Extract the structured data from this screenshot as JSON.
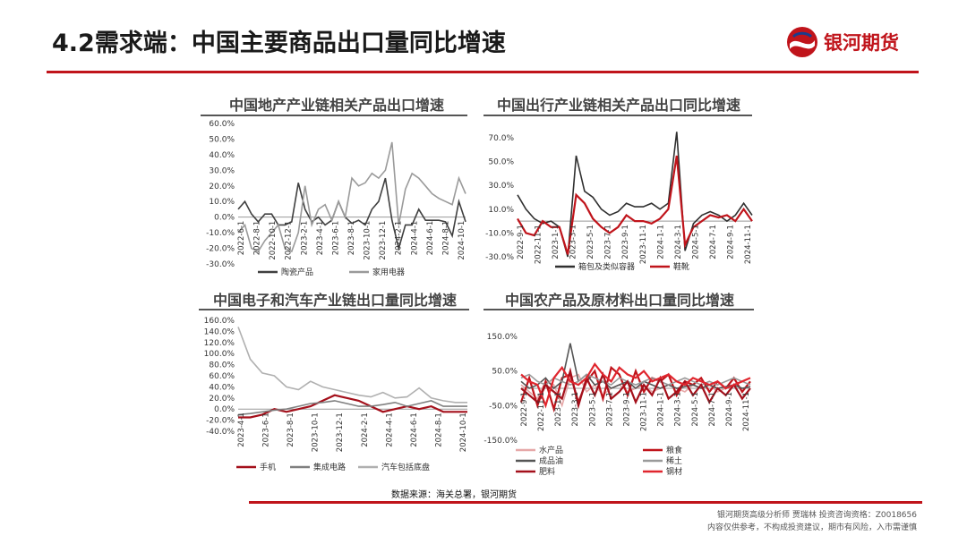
{
  "slide": {
    "title": "4.2需求端：中国主要商品出口量同比增速",
    "logo_name": "银河期货",
    "source": "数据来源：海关总署，银河期货",
    "disclaimer_line1": "银河期货高级分析师 贾瑞林 投资咨询资格：Z0018656",
    "disclaimer_line2": "内容仅供参考，不构成投资建议，期市有风险，入市需谨慎",
    "brand_color": "#c0141b"
  },
  "chart_data": [
    {
      "type": "line",
      "title": "中国地产产业链相关产品出口增速",
      "yticks": [
        "60.0%",
        "50.0%",
        "40.0%",
        "30.0%",
        "20.0%",
        "10.0%",
        "0.0%",
        "-10.0%",
        "-20.0%",
        "-30.0%"
      ],
      "ylim": [
        -30,
        60
      ],
      "xticks": [
        "2022-6-1",
        "2022-8-1",
        "2022-10-1",
        "2022-12-1",
        "2023-2-1",
        "2023-4-1",
        "2023-6-1",
        "2023-8-1",
        "2023-10-1",
        "2023-12-1",
        "2024-2-1",
        "2024-4-1",
        "2024-6-1",
        "2024-8-1",
        "2024-10-1"
      ],
      "legend_position": "bottom",
      "series": [
        {
          "name": "陶瓷产品",
          "color": "#404040",
          "values": [
            5,
            10,
            2,
            -3,
            2,
            2,
            -5,
            -5,
            -3,
            22,
            5,
            -3,
            0,
            -5,
            -2,
            10,
            0,
            -4,
            -2,
            -5,
            5,
            10,
            25,
            -2,
            -20,
            -5,
            -5,
            5,
            -2,
            -2,
            -2,
            -3,
            -12,
            10,
            -3
          ]
        },
        {
          "name": "家用电器",
          "color": "#9a9a9a",
          "values": [
            -10,
            -5,
            -20,
            -22,
            -15,
            -10,
            -5,
            -20,
            -22,
            -10,
            20,
            -5,
            5,
            8,
            -2,
            10,
            0,
            25,
            20,
            22,
            28,
            25,
            30,
            48,
            -5,
            18,
            28,
            25,
            20,
            15,
            12,
            10,
            8,
            25,
            15
          ]
        }
      ]
    },
    {
      "type": "line",
      "title": "中国出行产业链相关产品出口同比增速",
      "yticks": [
        "70.0%",
        "50.0%",
        "30.0%",
        "10.0%",
        "-10.0%",
        "-30.0%"
      ],
      "ylim": [
        -30,
        70
      ],
      "xticks": [
        "2022-9-1",
        "2022-11-1",
        "2023-1-1",
        "2023-3-1",
        "2023-5-1",
        "2023-7-1",
        "2023-9-1",
        "2023-11-1",
        "2024-1-1",
        "2024-3-1",
        "2024-5-1",
        "2024-7-1",
        "2024-9-1",
        "2024-11-1"
      ],
      "legend_position": "bottom",
      "series": [
        {
          "name": "箱包及类似容器",
          "color": "#303030",
          "values": [
            22,
            10,
            2,
            -2,
            0,
            -5,
            -30,
            55,
            25,
            20,
            10,
            5,
            8,
            15,
            12,
            12,
            15,
            10,
            15,
            75,
            -25,
            -2,
            5,
            8,
            5,
            0,
            5,
            15,
            5
          ]
        },
        {
          "name": "鞋靴",
          "color": "#c0141b",
          "values": [
            2,
            -10,
            -12,
            0,
            -5,
            -5,
            -28,
            22,
            15,
            2,
            -5,
            -10,
            -5,
            5,
            0,
            0,
            -2,
            2,
            10,
            55,
            -20,
            -5,
            0,
            5,
            3,
            5,
            0,
            10,
            0
          ]
        }
      ]
    },
    {
      "type": "line",
      "title": "中国电子和汽车产业链出口量同比增速",
      "yticks": [
        "160.0%",
        "140.0%",
        "120.0%",
        "100.0%",
        "80.0%",
        "60.0%",
        "40.0%",
        "20.0%",
        "0.0%",
        "-20.0%",
        "-40.0%"
      ],
      "ylim": [
        -40,
        160
      ],
      "xticks": [
        "2023-4-1",
        "2023-6-1",
        "2023-8-1",
        "2023-10-1",
        "2023-12-1",
        "2024-2-1",
        "2024-4-1",
        "2024-6-1",
        "2024-8-1",
        "2024-10-1"
      ],
      "legend_position": "bottom",
      "series": [
        {
          "name": "手机",
          "color": "#a4101b",
          "values": [
            -15,
            -15,
            -10,
            0,
            -5,
            0,
            5,
            15,
            25,
            20,
            15,
            5,
            -5,
            0,
            5,
            0,
            5,
            -5,
            -5,
            -5
          ]
        },
        {
          "name": "集成电路",
          "color": "#808080",
          "values": [
            -10,
            -8,
            -5,
            -2,
            0,
            5,
            10,
            12,
            15,
            10,
            5,
            5,
            8,
            12,
            5,
            10,
            15,
            5,
            5,
            5
          ]
        },
        {
          "name": "汽车包括底盘",
          "color": "#b0b0b0",
          "values": [
            148,
            90,
            65,
            60,
            40,
            35,
            50,
            40,
            35,
            30,
            25,
            22,
            30,
            20,
            22,
            38,
            20,
            15,
            12,
            12
          ]
        }
      ]
    },
    {
      "type": "line",
      "title": "中国农产品及原材料出口量同比增速",
      "yticks": [
        "150.0%",
        "50.0%",
        "-50.0%",
        "-150.0%"
      ],
      "ylim": [
        -150,
        150
      ],
      "xticks": [
        "2022-9-1",
        "2022-11-1",
        "2023-1-1",
        "2023-3-1",
        "2023-5-1",
        "2023-7-1",
        "2023-9-1",
        "2023-11-1",
        "2024-1-1",
        "2024-3-1",
        "2024-5-1",
        "2024-7-1",
        "2024-9-1",
        "2024-11-1"
      ],
      "legend_position": "bottom",
      "series": [
        {
          "name": "水产品",
          "color": "#e6a8a8",
          "values": [
            10,
            -10,
            -30,
            20,
            10,
            -50,
            30,
            40,
            -10,
            10,
            -20,
            0,
            10,
            -10,
            0,
            10,
            -10,
            0,
            10,
            0,
            -10,
            10,
            0,
            10,
            -10,
            0,
            10,
            0,
            5
          ]
        },
        {
          "name": "粮食",
          "color": "#c0141b",
          "values": [
            -40,
            30,
            -50,
            20,
            -60,
            30,
            40,
            -40,
            20,
            50,
            -30,
            60,
            40,
            -20,
            50,
            -10,
            30,
            20,
            40,
            -20,
            20,
            10,
            30,
            -10,
            20,
            0,
            30,
            -10,
            20
          ]
        },
        {
          "name": "成品油",
          "color": "#555555",
          "values": [
            20,
            0,
            10,
            30,
            0,
            20,
            130,
            20,
            40,
            10,
            20,
            0,
            10,
            20,
            0,
            20,
            10,
            0,
            10,
            0,
            5,
            10,
            0,
            10,
            0,
            5,
            10,
            0,
            5
          ]
        },
        {
          "name": "稀土",
          "color": "#9a9a9a",
          "values": [
            30,
            40,
            20,
            10,
            30,
            20,
            10,
            20,
            40,
            30,
            20,
            10,
            30,
            20,
            10,
            20,
            30,
            20,
            10,
            20,
            30,
            20,
            10,
            20,
            10,
            20,
            30,
            20,
            10
          ]
        },
        {
          "name": "肥料",
          "color": "#a4101b",
          "values": [
            0,
            -20,
            -40,
            10,
            -10,
            -30,
            50,
            -50,
            30,
            -20,
            40,
            -30,
            -10,
            20,
            -40,
            10,
            -20,
            30,
            -30,
            -10,
            20,
            -20,
            10,
            -40,
            0,
            -20,
            10,
            -30,
            0
          ]
        },
        {
          "name": "钢材",
          "color": "#e0262e",
          "values": [
            40,
            20,
            10,
            -50,
            30,
            60,
            20,
            10,
            30,
            70,
            40,
            20,
            60,
            40,
            30,
            50,
            20,
            30,
            40,
            20,
            10,
            30,
            20,
            10,
            20,
            0,
            10,
            20,
            30
          ]
        }
      ]
    }
  ]
}
